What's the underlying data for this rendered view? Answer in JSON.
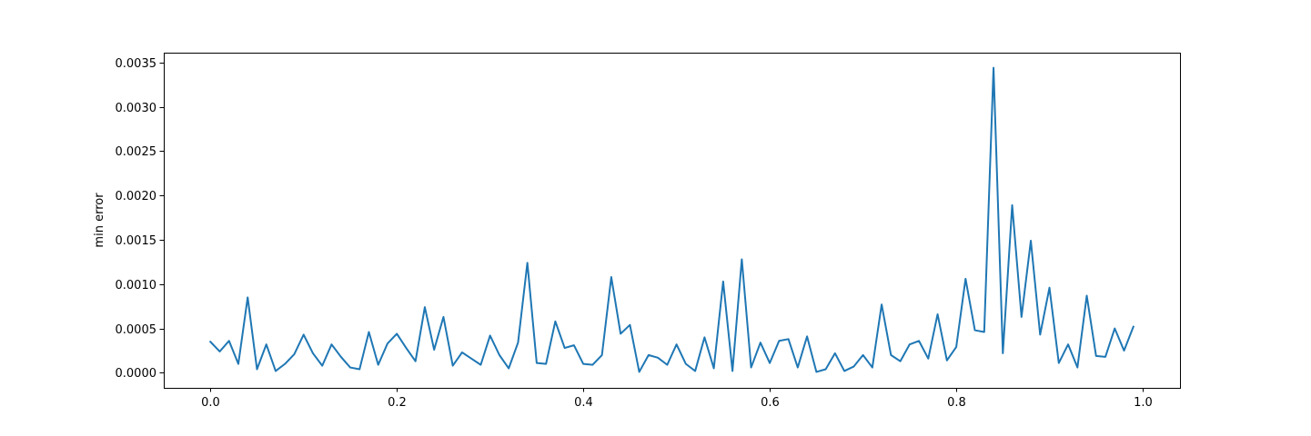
{
  "chart_data": {
    "type": "line",
    "title": "",
    "xlabel": "",
    "ylabel": "min error",
    "xlim": [
      -0.05,
      1.04
    ],
    "ylim": [
      -0.00017,
      0.00361
    ],
    "grid": false,
    "legend": "none",
    "line_color": "#1f77b4",
    "x_ticks": [
      {
        "value": 0.0,
        "label": "0.0"
      },
      {
        "value": 0.2,
        "label": "0.2"
      },
      {
        "value": 0.4,
        "label": "0.4"
      },
      {
        "value": 0.6,
        "label": "0.6"
      },
      {
        "value": 0.8,
        "label": "0.8"
      },
      {
        "value": 1.0,
        "label": "1.0"
      }
    ],
    "y_ticks": [
      {
        "value": 0.0,
        "label": "0.0000"
      },
      {
        "value": 0.0005,
        "label": "0.0005"
      },
      {
        "value": 0.001,
        "label": "0.0010"
      },
      {
        "value": 0.0015,
        "label": "0.0015"
      },
      {
        "value": 0.002,
        "label": "0.0020"
      },
      {
        "value": 0.0025,
        "label": "0.0025"
      },
      {
        "value": 0.003,
        "label": "0.0030"
      },
      {
        "value": 0.0035,
        "label": "0.0035"
      }
    ],
    "series": [
      {
        "x_start": 0.0,
        "x_step": 0.01,
        "values": [
          0.00035,
          0.00024,
          0.00036,
          0.0001,
          0.00085,
          4e-05,
          0.00032,
          2e-05,
          0.0001,
          0.00021,
          0.00043,
          0.00022,
          8e-05,
          0.00032,
          0.00018,
          6e-05,
          4e-05,
          0.00046,
          9e-05,
          0.00033,
          0.00044,
          0.00028,
          0.00013,
          0.00074,
          0.00026,
          0.00063,
          8e-05,
          0.00023,
          0.00016,
          9e-05,
          0.00042,
          0.0002,
          5e-05,
          0.00034,
          0.00124,
          0.00011,
          0.0001,
          0.00058,
          0.00028,
          0.00031,
          0.0001,
          9e-05,
          0.0002,
          0.00108,
          0.00044,
          0.00054,
          1e-05,
          0.0002,
          0.00017,
          9e-05,
          0.00032,
          0.0001,
          2e-05,
          0.0004,
          5e-05,
          0.00103,
          2e-05,
          0.00128,
          6e-05,
          0.00034,
          0.00011,
          0.00036,
          0.00038,
          6e-05,
          0.00041,
          1e-05,
          4e-05,
          0.00022,
          2e-05,
          7e-05,
          0.0002,
          6e-05,
          0.00077,
          0.0002,
          0.00013,
          0.00032,
          0.00036,
          0.00016,
          0.00066,
          0.00014,
          0.00029,
          0.00106,
          0.00048,
          0.00046,
          0.00344,
          0.00022,
          0.00189,
          0.00063,
          0.00149,
          0.00043,
          0.00096,
          0.00011,
          0.00032,
          6e-05,
          0.00087,
          0.00019,
          0.00018,
          0.0005,
          0.00025,
          0.00052
        ]
      }
    ]
  }
}
